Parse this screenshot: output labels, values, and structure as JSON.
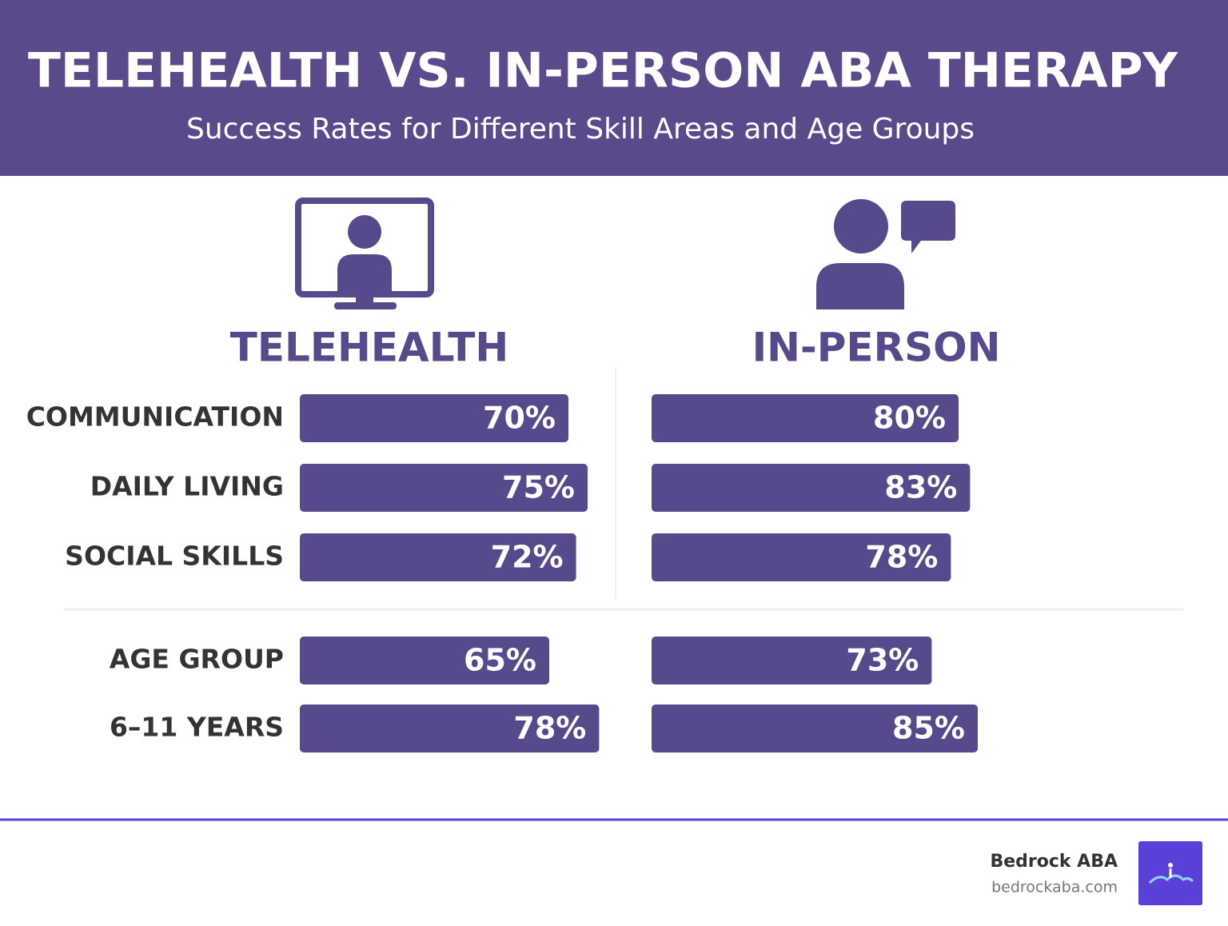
{
  "chart_data": {
    "type": "bar",
    "title": "TELEHEALTH VS. IN-PERSON ABA THERAPY",
    "subtitle": "Success Rates for Different Skill Areas and Age Groups",
    "categories": [
      "COMMUNICATION",
      "DAILY LIVING",
      "SOCIAL SKILLS",
      "AGE GROUP",
      "6–11 YEARS"
    ],
    "series": [
      {
        "name": "TELEHEALTH",
        "color": "#574a8c",
        "values": [
          70,
          75,
          72,
          65,
          78
        ],
        "value_labels": [
          "70%",
          "75%",
          "72%",
          "65%",
          "78%"
        ]
      },
      {
        "name": "IN-PERSON",
        "color": "#574a8c",
        "values": [
          80,
          83,
          78,
          73,
          85
        ],
        "value_labels": [
          "80%",
          "83%",
          "78%",
          "73%",
          "85%"
        ]
      }
    ]
  },
  "footer": {
    "brand": "Bedrock ABA",
    "url": "bedrockaba.com"
  }
}
